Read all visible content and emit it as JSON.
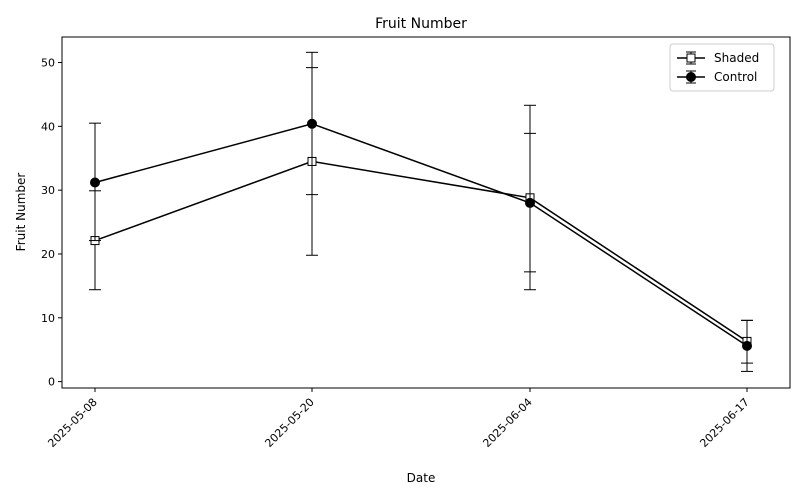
{
  "chart_data": {
    "type": "line",
    "title": "Fruit Number",
    "xlabel": "Date",
    "ylabel": "Fruit Number",
    "x": [
      "2025-05-08",
      "2025-05-20",
      "2025-06-04",
      "2025-06-17"
    ],
    "yticks": [
      0,
      10,
      20,
      30,
      40,
      50
    ],
    "ylim": [
      -1,
      54
    ],
    "grid": false,
    "legend_position": "upper right",
    "series": [
      {
        "name": "Shaded",
        "marker": "square-open",
        "color": "#000000",
        "values": [
          22.1,
          34.5,
          28.8,
          6.3
        ],
        "err_low": [
          14.4,
          19.8,
          14.4,
          2.9
        ],
        "err_high": [
          29.9,
          49.2,
          43.3,
          9.6
        ]
      },
      {
        "name": "Control",
        "marker": "circle-filled",
        "color": "#000000",
        "values": [
          31.2,
          40.4,
          28.0,
          5.6
        ],
        "err_low": [
          22.1,
          29.3,
          17.2,
          1.6
        ],
        "err_high": [
          40.5,
          51.6,
          38.9,
          9.6
        ]
      }
    ]
  }
}
